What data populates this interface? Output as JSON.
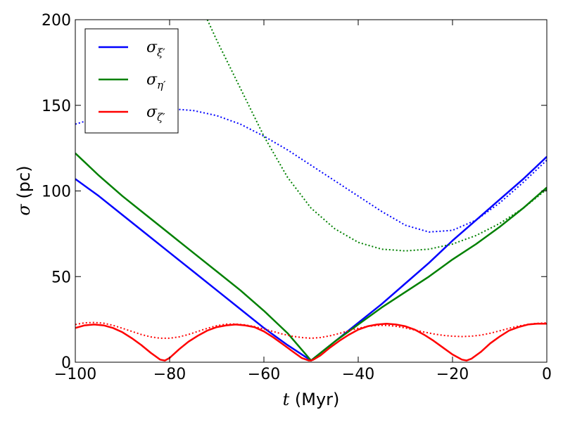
{
  "chart_data": {
    "type": "line",
    "xlabel": {
      "symbol": "t",
      "rest": " (Myr)"
    },
    "ylabel": {
      "symbol": "σ",
      "rest": " (pc)"
    },
    "xlim": [
      -100,
      0
    ],
    "ylim": [
      0,
      200
    ],
    "xticks": [
      -100,
      -80,
      -60,
      -40,
      -20,
      0
    ],
    "xtick_labels": [
      "−100",
      "−80",
      "−60",
      "−40",
      "−20",
      "0"
    ],
    "yticks": [
      0,
      50,
      100,
      150,
      200
    ],
    "ytick_labels": [
      "0",
      "50",
      "100",
      "150",
      "200"
    ],
    "grid": false,
    "legend_position": "top-left",
    "series": [
      {
        "name": "σξ′",
        "base": "σ",
        "sub": "ξ′",
        "color": "#0000ff",
        "style": "solid",
        "x": [
          -100,
          -95,
          -90,
          -85,
          -80,
          -75,
          -70,
          -65,
          -60,
          -55,
          -50,
          -45,
          -40,
          -35,
          -30,
          -25,
          -20,
          -15,
          -10,
          -5,
          0
        ],
        "y": [
          107,
          97,
          86,
          75,
          64,
          53,
          42,
          31,
          20,
          10,
          1,
          12,
          23,
          34,
          46,
          58,
          71,
          83,
          95,
          107,
          120
        ]
      },
      {
        "name": "σξ′ (dotted)",
        "color": "#0000ff",
        "style": "dotted",
        "x": [
          -100,
          -95,
          -90,
          -85,
          -80,
          -75,
          -70,
          -65,
          -60,
          -55,
          -50,
          -45,
          -40,
          -35,
          -30,
          -25,
          -20,
          -15,
          -10,
          -5,
          0
        ],
        "y": [
          139,
          143,
          146,
          148,
          148,
          147,
          144,
          139,
          132,
          124,
          115,
          106,
          97,
          88,
          80,
          76,
          77,
          83,
          93,
          105,
          118
        ]
      },
      {
        "name": "ση′",
        "base": "σ",
        "sub": "η′",
        "color": "#008000",
        "style": "solid",
        "x": [
          -100,
          -95,
          -90,
          -85,
          -80,
          -75,
          -70,
          -65,
          -60,
          -55,
          -50,
          -45,
          -40,
          -35,
          -30,
          -25,
          -20,
          -15,
          -10,
          -5,
          0
        ],
        "y": [
          122,
          109,
          97,
          86,
          75,
          64,
          53,
          42,
          30,
          17,
          1,
          12,
          22,
          32,
          41,
          50,
          60,
          69,
          79,
          90,
          102
        ]
      },
      {
        "name": "ση′ (dotted)",
        "color": "#008000",
        "style": "dotted",
        "x": [
          -72,
          -70,
          -65,
          -60,
          -55,
          -50,
          -45,
          -40,
          -35,
          -30,
          -25,
          -20,
          -15,
          -10,
          -5,
          0
        ],
        "y": [
          200,
          188,
          160,
          132,
          108,
          90,
          78,
          70,
          66,
          65,
          66,
          69,
          74,
          81,
          90,
          101
        ]
      },
      {
        "name": "σζ′",
        "base": "σ",
        "sub": "ζ′",
        "color": "#ff0000",
        "style": "solid",
        "x": [
          -100,
          -98,
          -96,
          -94,
          -92,
          -90,
          -88,
          -86,
          -84,
          -82,
          -81,
          -80,
          -78,
          -76,
          -74,
          -72,
          -70,
          -68,
          -66,
          -64,
          -62,
          -60,
          -58,
          -56,
          -54,
          -52,
          -50.5,
          -50,
          -49.5,
          -48,
          -46,
          -44,
          -42,
          -40,
          -38,
          -36,
          -34,
          -32,
          -30,
          -28,
          -26,
          -24,
          -22,
          -20,
          -18,
          -17,
          -16,
          -14,
          -12,
          -10,
          -8,
          -6,
          -4,
          -2,
          0
        ],
        "y": [
          20,
          21.5,
          22,
          21.5,
          20,
          17.5,
          14,
          10,
          5.5,
          1.5,
          1,
          2.5,
          7.5,
          12,
          15.5,
          18.5,
          20.5,
          21.5,
          22,
          21.5,
          20.5,
          18,
          14.5,
          10.5,
          6.5,
          2.5,
          1,
          1,
          1.5,
          4,
          8.5,
          12.5,
          16,
          19,
          21,
          22,
          22.5,
          22,
          21,
          19,
          16,
          12.5,
          8.5,
          4.5,
          1.5,
          1,
          2,
          6,
          11,
          15,
          18.5,
          20.5,
          22,
          22.5,
          22.5
        ]
      },
      {
        "name": "σζ′ (dotted)",
        "color": "#ff0000",
        "style": "dotted",
        "x": [
          -100,
          -98,
          -96,
          -94,
          -92,
          -90,
          -88,
          -86,
          -84,
          -82,
          -80,
          -78,
          -76,
          -74,
          -72,
          -70,
          -68,
          -66,
          -64,
          -62,
          -60,
          -58,
          -56,
          -54,
          -52,
          -50,
          -48,
          -46,
          -44,
          -42,
          -40,
          -38,
          -36,
          -34,
          -32,
          -30,
          -28,
          -26,
          -24,
          -22,
          -20,
          -18,
          -16,
          -14,
          -12,
          -10,
          -8,
          -6,
          -4,
          -2,
          0
        ],
        "y": [
          22,
          23,
          23.2,
          22.8,
          21.5,
          19.8,
          18,
          16.2,
          14.8,
          14,
          14,
          14.8,
          16.2,
          18,
          19.8,
          21.3,
          22.2,
          22.3,
          21.8,
          20.8,
          19.4,
          17.9,
          16.4,
          15.2,
          14.4,
          14,
          14.4,
          15.4,
          16.8,
          18.4,
          19.8,
          20.9,
          21.5,
          21.5,
          21,
          20,
          18.8,
          17.6,
          16.5,
          15.7,
          15.2,
          15,
          15.2,
          15.8,
          16.9,
          18.3,
          19.8,
          21.1,
          22.1,
          22.7,
          23
        ]
      }
    ]
  }
}
